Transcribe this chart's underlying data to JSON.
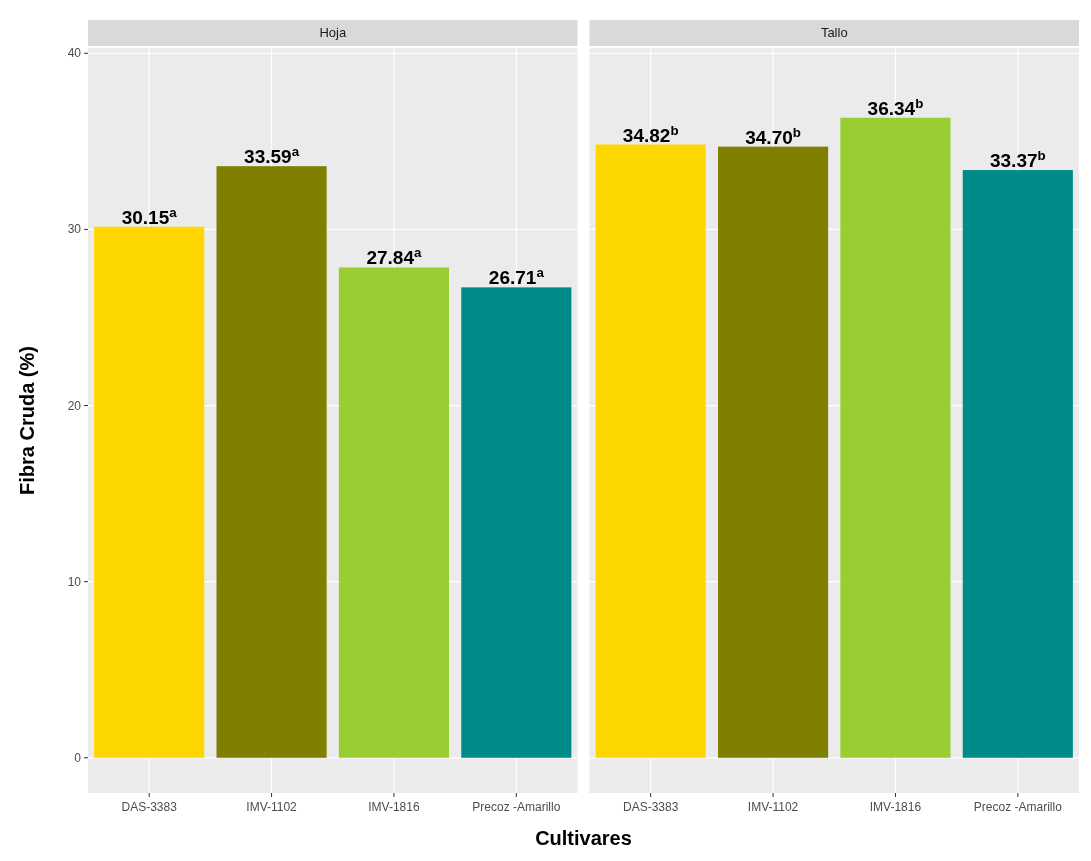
{
  "chart_data": [
    {
      "type": "bar",
      "title": "Hoja",
      "xlabel": "Cultivares",
      "ylabel": "Fibra Cruda (%)",
      "categories": [
        "DAS-3383",
        "IMV-1102",
        "IMV-1816",
        "Precoz -Amarillo"
      ],
      "values": [
        30.15,
        33.59,
        27.84,
        26.71
      ],
      "colors": [
        "#ffd700",
        "#808000",
        "#9acd32",
        "#008b8b"
      ],
      "value_labels": [
        "30.15$^{a}$",
        "33.59$^{a}$",
        "27.84$^{a}$",
        "26.71$^{a}$"
      ],
      "ylim": [
        -2,
        40.3
      ],
      "yticks": [
        0,
        10,
        20,
        30,
        40
      ],
      "grid": true
    },
    {
      "type": "bar",
      "title": "Tallo",
      "categories": [
        "DAS-3383",
        "IMV-1102",
        "IMV-1816",
        "Precoz -Amarillo"
      ],
      "values": [
        34.82,
        34.7,
        36.34,
        33.37
      ],
      "colors": [
        "#ffd700",
        "#808000",
        "#9acd32",
        "#008b8b"
      ],
      "value_labels": [
        "34.82$^{b}$",
        "34.70$^{b}$",
        "36.34$^{b}$",
        "33.37$^{b}$"
      ],
      "ylim": [
        -2,
        40.3
      ],
      "yticks": [
        0,
        10,
        20,
        30,
        40
      ],
      "grid": true,
      "tick_labels": "x"
    }
  ]
}
